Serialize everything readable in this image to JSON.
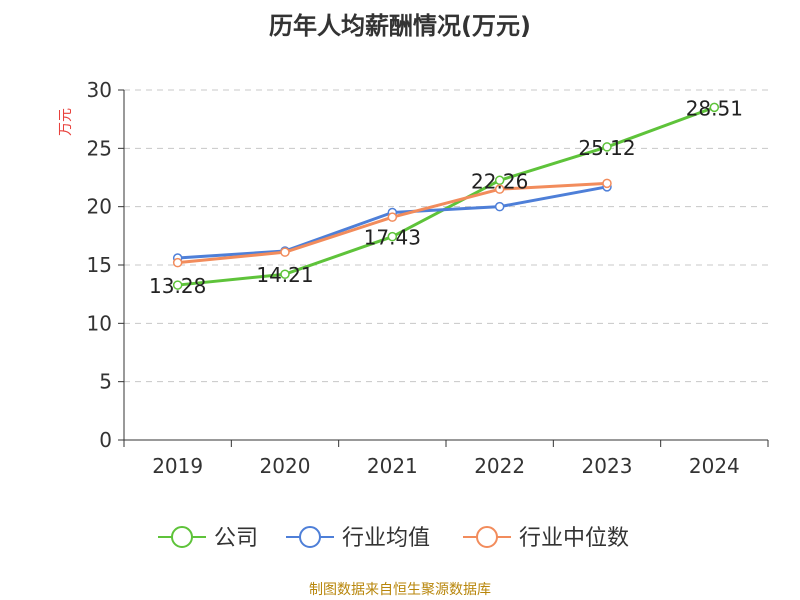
{
  "chart_data": {
    "type": "line",
    "title": "历年人均薪酬情况(万元)",
    "ylabel": "万元",
    "xlabel": "",
    "categories": [
      "2019",
      "2020",
      "2021",
      "2022",
      "2023",
      "2024"
    ],
    "ylim": [
      0,
      30
    ],
    "yticks": [
      0,
      5,
      10,
      15,
      20,
      25,
      30
    ],
    "grid": true,
    "legend_position": "bottom",
    "series": [
      {
        "name": "公司",
        "color": "#5ec33a",
        "values": [
          13.28,
          14.21,
          17.43,
          22.26,
          25.12,
          28.51
        ],
        "labels": [
          "13.28",
          "14.21",
          "17.43",
          "22.26",
          "25.12",
          "28.51"
        ]
      },
      {
        "name": "行业均值",
        "color": "#4e7fd8",
        "values": [
          15.6,
          16.2,
          19.5,
          20.0,
          21.7,
          null
        ]
      },
      {
        "name": "行业中位数",
        "color": "#f28c5c",
        "values": [
          15.2,
          16.1,
          19.1,
          21.5,
          22.0,
          null
        ]
      }
    ]
  },
  "footer": {
    "source": "制图数据来自恒生聚源数据库"
  }
}
